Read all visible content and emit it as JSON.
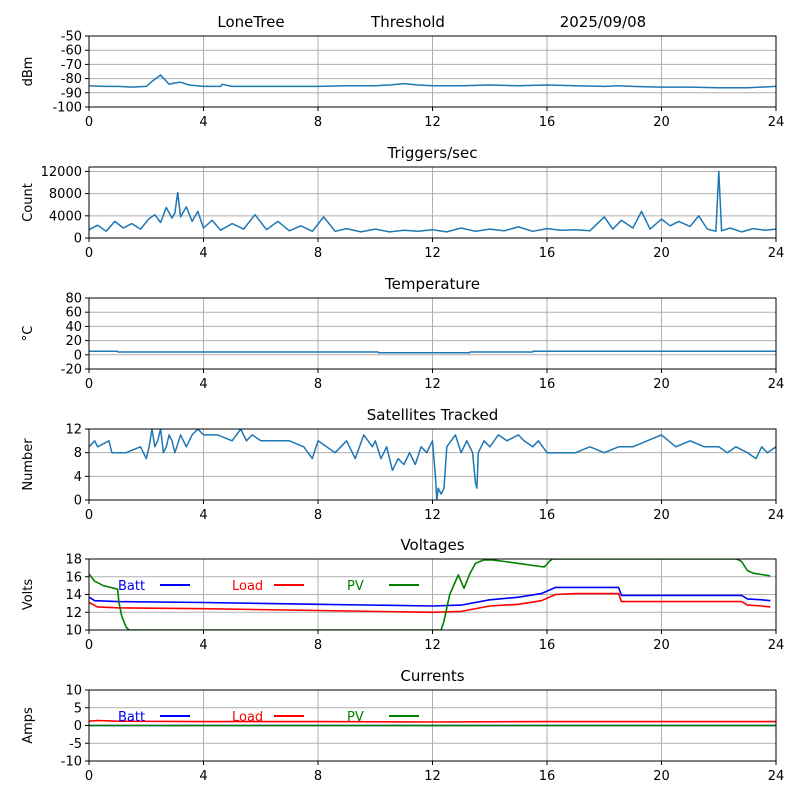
{
  "header": {
    "site": "LoneTree",
    "mode": "Threshold",
    "date": "2025/09/08"
  },
  "colors": {
    "series": "#1f77b4",
    "batt": "#0000ff",
    "load": "#ff0000",
    "pv": "#008000",
    "grid": "#b0b0b0"
  },
  "chart_data": [
    {
      "id": "rssi",
      "type": "line",
      "title": "",
      "xlabel": "",
      "ylabel": "dBm",
      "xlim": [
        0,
        24
      ],
      "ylim": [
        -100,
        -50
      ],
      "xticks": [
        0,
        4,
        8,
        12,
        16,
        20,
        24
      ],
      "yticks": [
        -100,
        -90,
        -80,
        -70,
        -60,
        -50
      ],
      "grid": true,
      "series": [
        {
          "color": "#1f77b4",
          "x": [
            0,
            0.5,
            1,
            1.5,
            2,
            2.2,
            2.5,
            2.8,
            3,
            3.2,
            3.5,
            4,
            4.6,
            4.65,
            5,
            6,
            7,
            8,
            9,
            10,
            10.5,
            11,
            11.5,
            12,
            13,
            14,
            15,
            16,
            17,
            18,
            18.5,
            19,
            20,
            21,
            22,
            23,
            24
          ],
          "y": [
            -85,
            -85.5,
            -85.5,
            -86,
            -85.5,
            -82,
            -77.5,
            -84,
            -83,
            -82.5,
            -84.5,
            -85.5,
            -85.5,
            -84,
            -85.5,
            -85.5,
            -85.5,
            -85.5,
            -85,
            -85,
            -84.5,
            -83.5,
            -84.5,
            -85,
            -85,
            -84.5,
            -85,
            -84.5,
            -85,
            -85.5,
            -85,
            -85.5,
            -86,
            -86,
            -86.5,
            -86.5,
            -85.5
          ]
        }
      ]
    },
    {
      "id": "triggers",
      "type": "line",
      "title": "Triggers/sec",
      "xlabel": "",
      "ylabel": "Count",
      "xlim": [
        0,
        24
      ],
      "ylim": [
        0,
        12800
      ],
      "xticks": [
        0,
        4,
        8,
        12,
        16,
        20,
        24
      ],
      "yticks": [
        0,
        4000,
        8000,
        12000
      ],
      "grid": true,
      "series": [
        {
          "color": "#1f77b4",
          "x": [
            0,
            0.3,
            0.6,
            0.9,
            1.2,
            1.5,
            1.8,
            2.1,
            2.3,
            2.5,
            2.7,
            2.9,
            3.0,
            3.1,
            3.2,
            3.4,
            3.6,
            3.8,
            4.0,
            4.3,
            4.6,
            5.0,
            5.4,
            5.8,
            6.2,
            6.6,
            7.0,
            7.4,
            7.8,
            8.2,
            8.6,
            9.0,
            9.5,
            10,
            10.5,
            11,
            11.5,
            12,
            12.5,
            13,
            13.5,
            14,
            14.5,
            15,
            15.5,
            16,
            16.5,
            17,
            17.5,
            18,
            18.3,
            18.6,
            19,
            19.3,
            19.6,
            20,
            20.3,
            20.6,
            21,
            21.3,
            21.6,
            21.9,
            22.0,
            22.1,
            22.4,
            22.8,
            23.2,
            23.6,
            24
          ],
          "y": [
            1500,
            2300,
            1200,
            3000,
            1800,
            2600,
            1600,
            3500,
            4200,
            2800,
            5500,
            3600,
            4500,
            8200,
            3800,
            5600,
            3000,
            4800,
            1800,
            3200,
            1400,
            2600,
            1600,
            4200,
            1500,
            3000,
            1300,
            2200,
            1200,
            3800,
            1200,
            1700,
            1100,
            1600,
            1100,
            1400,
            1200,
            1500,
            1100,
            1800,
            1200,
            1600,
            1300,
            2000,
            1200,
            1700,
            1400,
            1500,
            1300,
            3800,
            1600,
            3200,
            1800,
            4800,
            1600,
            3400,
            2200,
            3000,
            2100,
            4000,
            1600,
            1200,
            12000,
            1300,
            1800,
            1100,
            1700,
            1400,
            1600
          ]
        }
      ]
    },
    {
      "id": "temperature",
      "type": "line",
      "title": "Temperature",
      "xlabel": "",
      "ylabel": "°C",
      "xlim": [
        0,
        24
      ],
      "ylim": [
        -20,
        80
      ],
      "xticks": [
        0,
        4,
        8,
        12,
        16,
        20,
        24
      ],
      "yticks": [
        -20,
        0,
        20,
        40,
        60,
        80
      ],
      "grid": true,
      "series": [
        {
          "color": "#1f77b4",
          "x": [
            0,
            1,
            1.01,
            10.1,
            10.11,
            13.3,
            13.31,
            15.5,
            15.51,
            24
          ],
          "y": [
            5,
            5,
            4,
            4,
            3,
            3,
            4,
            4,
            5,
            5
          ]
        }
      ]
    },
    {
      "id": "satellites",
      "type": "line",
      "title": "Satellites Tracked",
      "xlabel": "",
      "ylabel": "Number",
      "xlim": [
        0,
        24
      ],
      "ylim": [
        0,
        12
      ],
      "xticks": [
        0,
        4,
        8,
        12,
        16,
        20,
        24
      ],
      "yticks": [
        0,
        4,
        8,
        12
      ],
      "grid": true,
      "series": [
        {
          "color": "#1f77b4",
          "x": [
            0,
            0.2,
            0.3,
            0.7,
            0.8,
            1.3,
            1.8,
            2.0,
            2.1,
            2.2,
            2.3,
            2.4,
            2.5,
            2.6,
            2.7,
            2.8,
            2.9,
            3.0,
            3.2,
            3.4,
            3.6,
            3.8,
            4.0,
            4.5,
            5.0,
            5.3,
            5.5,
            5.7,
            6.0,
            6.5,
            7.0,
            7.5,
            7.8,
            8.0,
            8.3,
            8.6,
            9.0,
            9.3,
            9.6,
            9.9,
            10.0,
            10.2,
            10.4,
            10.6,
            10.8,
            11.0,
            11.2,
            11.4,
            11.6,
            11.8,
            12.0,
            12.1,
            12.15,
            12.2,
            12.3,
            12.4,
            12.5,
            12.8,
            13.0,
            13.2,
            13.4,
            13.5,
            13.55,
            13.6,
            13.8,
            14.0,
            14.3,
            14.6,
            15.0,
            15.2,
            15.5,
            15.7,
            16.0,
            16.5,
            17.0,
            17.5,
            18.0,
            18.5,
            19.0,
            19.5,
            20.0,
            20.5,
            21.0,
            21.5,
            22.0,
            22.3,
            22.6,
            23.0,
            23.3,
            23.5,
            23.7,
            24
          ],
          "y": [
            9,
            10,
            9,
            10,
            8,
            8,
            9,
            7,
            9,
            12,
            9,
            10,
            12,
            8,
            9,
            11,
            10,
            8,
            11,
            9,
            11,
            12,
            11,
            11,
            10,
            12,
            10,
            11,
            10,
            10,
            10,
            9,
            7,
            10,
            9,
            8,
            10,
            7,
            11,
            9,
            10,
            7,
            9,
            5,
            7,
            6,
            8,
            6,
            9,
            8,
            10,
            4,
            0,
            2,
            1,
            2,
            9,
            11,
            8,
            10,
            8,
            3,
            2,
            8,
            10,
            9,
            11,
            10,
            11,
            10,
            9,
            10,
            8,
            8,
            8,
            9,
            8,
            9,
            9,
            10,
            11,
            9,
            10,
            9,
            9,
            8,
            9,
            8,
            7,
            9,
            8,
            9
          ]
        }
      ]
    },
    {
      "id": "voltages",
      "type": "line",
      "title": "Voltages",
      "xlabel": "",
      "ylabel": "Volts",
      "xlim": [
        0,
        24
      ],
      "ylim": [
        10,
        18
      ],
      "xticks": [
        0,
        4,
        8,
        12,
        16,
        20,
        24
      ],
      "yticks": [
        10,
        12,
        14,
        16,
        18
      ],
      "grid": true,
      "legend": "top-left",
      "series": [
        {
          "name": "Batt",
          "color": "#0000ff",
          "x": [
            0,
            0.2,
            1,
            4,
            8,
            12,
            13,
            14,
            15,
            15.8,
            16.3,
            17,
            18,
            18.5,
            18.6,
            20,
            22,
            22.8,
            23,
            23.5,
            23.8
          ],
          "y": [
            13.7,
            13.3,
            13.2,
            13.1,
            12.9,
            12.7,
            12.8,
            13.4,
            13.7,
            14.1,
            14.8,
            14.8,
            14.8,
            14.8,
            13.9,
            13.9,
            13.9,
            13.9,
            13.5,
            13.4,
            13.3
          ]
        },
        {
          "name": "Load",
          "color": "#ff0000",
          "x": [
            0,
            0.3,
            1,
            4,
            8,
            12,
            13,
            14,
            15,
            15.8,
            16.3,
            17,
            18,
            18.5,
            18.6,
            20,
            22,
            22.8,
            23,
            23.5,
            23.8
          ],
          "y": [
            13.1,
            12.6,
            12.5,
            12.4,
            12.2,
            12.0,
            12.1,
            12.7,
            12.9,
            13.3,
            14.0,
            14.1,
            14.1,
            14.1,
            13.2,
            13.2,
            13.2,
            13.2,
            12.8,
            12.7,
            12.6
          ]
        },
        {
          "name": "PV",
          "color": "#008000",
          "x": [
            0,
            0.2,
            0.5,
            1.0,
            1.05,
            1.15,
            1.3,
            1.4,
            12.3,
            12.4,
            12.6,
            12.9,
            13.1,
            13.3,
            13.5,
            13.8,
            14.1,
            15.0,
            15.9,
            16.0,
            16.1,
            16.2,
            16.3,
            22.6,
            22.7,
            22.8,
            23.0,
            23.2,
            23.6,
            23.8
          ],
          "y": [
            16.3,
            15.5,
            15.0,
            14.6,
            13.0,
            11.5,
            10.3,
            10.0,
            10.0,
            11.0,
            14.0,
            16.2,
            14.7,
            16.3,
            17.5,
            17.9,
            17.9,
            17.5,
            17.1,
            17.4,
            17.8,
            18.0,
            18.0,
            18.0,
            17.9,
            17.7,
            16.7,
            16.4,
            16.2,
            16.1
          ]
        }
      ]
    },
    {
      "id": "currents",
      "type": "line",
      "title": "Currents",
      "xlabel": "",
      "ylabel": "Amps",
      "xlim": [
        0,
        24
      ],
      "ylim": [
        -10,
        10
      ],
      "xticks": [
        0,
        4,
        8,
        12,
        16,
        20,
        24
      ],
      "yticks": [
        -10,
        -5,
        0,
        5,
        10
      ],
      "grid": true,
      "legend": "top-left",
      "series": [
        {
          "name": "Batt",
          "color": "#0000ff",
          "x": [
            0,
            24
          ],
          "y": [
            0,
            0
          ]
        },
        {
          "name": "Load",
          "color": "#ff0000",
          "x": [
            0,
            0.3,
            1,
            4,
            8,
            12,
            16,
            18.5,
            20,
            24
          ],
          "y": [
            1.2,
            1.4,
            1.2,
            1.1,
            1.1,
            1.0,
            1.1,
            1.1,
            1.1,
            1.1
          ]
        },
        {
          "name": "PV",
          "color": "#008000",
          "x": [
            0,
            24
          ],
          "y": [
            0,
            0
          ]
        }
      ]
    }
  ]
}
